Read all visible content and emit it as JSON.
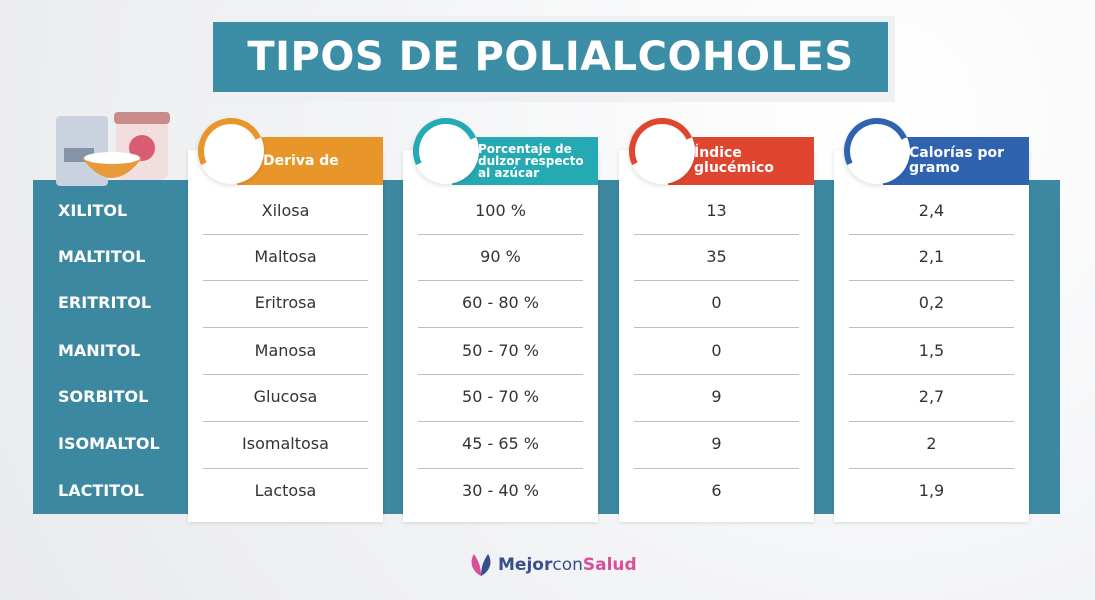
{
  "title": "TIPOS DE POLIALCOHOLES",
  "columns": [
    {
      "header": "Deriva de",
      "color": "#e8952a"
    },
    {
      "header": "Porcentaje de dulzor respecto al azúcar",
      "color": "#25a9b2"
    },
    {
      "header": "Índice glucémico",
      "color": "#e0452f"
    },
    {
      "header": "Calorías por gramo",
      "color": "#2f63b0"
    }
  ],
  "rows": [
    {
      "name": "XILITOL",
      "cells": [
        "Xilosa",
        "100 %",
        "13",
        "2,4"
      ]
    },
    {
      "name": "MALTITOL",
      "cells": [
        "Maltosa",
        "90 %",
        "35",
        "2,1"
      ]
    },
    {
      "name": "ERITRITOL",
      "cells": [
        "Eritrosa",
        "60 - 80 %",
        "0",
        "0,2"
      ]
    },
    {
      "name": "MANITOL",
      "cells": [
        "Manosa",
        "50 - 70 %",
        "0",
        "1,5"
      ]
    },
    {
      "name": "SORBITOL",
      "cells": [
        "Glucosa",
        "50 - 70 %",
        "9",
        "2,7"
      ]
    },
    {
      "name": "ISOMALTOL",
      "cells": [
        "Isomaltosa",
        "45 - 65 %",
        "9",
        "2"
      ]
    },
    {
      "name": "LACTITOL",
      "cells": [
        "Lactosa",
        "30 - 40 %",
        "6",
        "1,9"
      ]
    }
  ],
  "logo": {
    "parts": [
      "Mejor",
      "con",
      "Salud"
    ]
  }
}
